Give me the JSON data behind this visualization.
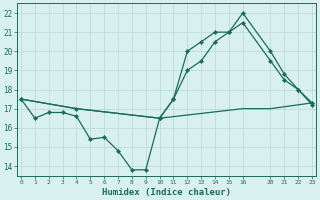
{
  "line1_x": [
    0,
    1,
    2,
    3,
    4,
    5,
    6,
    7,
    8,
    9,
    10,
    11,
    12,
    13,
    14,
    15,
    16,
    20,
    21,
    22,
    23
  ],
  "line1_y": [
    17.5,
    16.5,
    16.8,
    16.8,
    16.6,
    15.4,
    15.5,
    14.8,
    13.8,
    13.8,
    16.5,
    17.5,
    20.0,
    20.5,
    21.0,
    21.0,
    22.0,
    20.0,
    18.8,
    18.0,
    17.3
  ],
  "line2_x": [
    0,
    4,
    10,
    11,
    12,
    13,
    14,
    15,
    16,
    20,
    21,
    22,
    23
  ],
  "line2_y": [
    17.5,
    17.0,
    16.5,
    17.5,
    19.0,
    19.5,
    20.5,
    21.0,
    21.5,
    19.5,
    18.5,
    18.0,
    17.2
  ],
  "line3_x": [
    0,
    4,
    10,
    16,
    20,
    23
  ],
  "line3_y": [
    17.5,
    17.0,
    16.5,
    17.0,
    17.0,
    17.3
  ],
  "line_color": "#1a6b5a",
  "bg_color": "#d8f0f0",
  "grid_color": "#b8d8d8",
  "xlabel": "Humidex (Indice chaleur)",
  "ylim": [
    13.5,
    22.5
  ],
  "yticks": [
    14,
    15,
    16,
    17,
    18,
    19,
    20,
    21,
    22
  ],
  "xtick_positions": [
    0,
    1,
    2,
    3,
    4,
    5,
    6,
    7,
    8,
    9,
    10,
    11,
    12,
    13,
    14,
    15,
    16,
    20,
    21,
    22,
    23
  ],
  "xtick_labels": [
    "0",
    "1",
    "2",
    "3",
    "4",
    "5",
    "6",
    "7",
    "8",
    "9",
    "10",
    "11",
    "12",
    "13",
    "14",
    "15",
    "16",
    "20",
    "21",
    "22",
    "23"
  ]
}
